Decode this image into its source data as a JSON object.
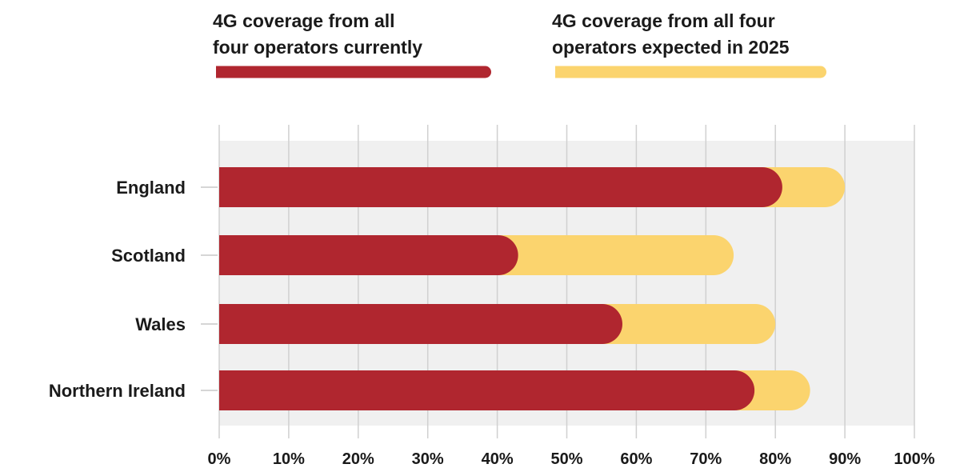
{
  "chart_data": {
    "type": "bar",
    "orientation": "horizontal",
    "categories": [
      "England",
      "Scotland",
      "Wales",
      "Northern Ireland"
    ],
    "series": [
      {
        "name": "4G coverage from all four operators currently",
        "values": [
          81,
          43,
          58,
          77
        ]
      },
      {
        "name": "4G coverage from all four operators expected in 2025",
        "values": [
          90,
          74,
          80,
          85
        ]
      }
    ],
    "legend": {
      "position": "top",
      "items": [
        {
          "lines": [
            "4G coverage from all",
            "four operators currently"
          ],
          "color": "#B0262F"
        },
        {
          "lines": [
            "4G coverage from all four",
            "operators expected in 2025"
          ],
          "color": "#FBD46E"
        }
      ]
    },
    "x_ticks": [
      "0%",
      "10%",
      "20%",
      "30%",
      "40%",
      "50%",
      "60%",
      "70%",
      "80%",
      "90%",
      "100%"
    ],
    "xlim": [
      0,
      100
    ],
    "grid": true,
    "colors": {
      "current": "#B0262F",
      "expected": "#FBD46E",
      "plot_background": "#F0F0F0",
      "gridline": "#D0D0D0"
    }
  }
}
